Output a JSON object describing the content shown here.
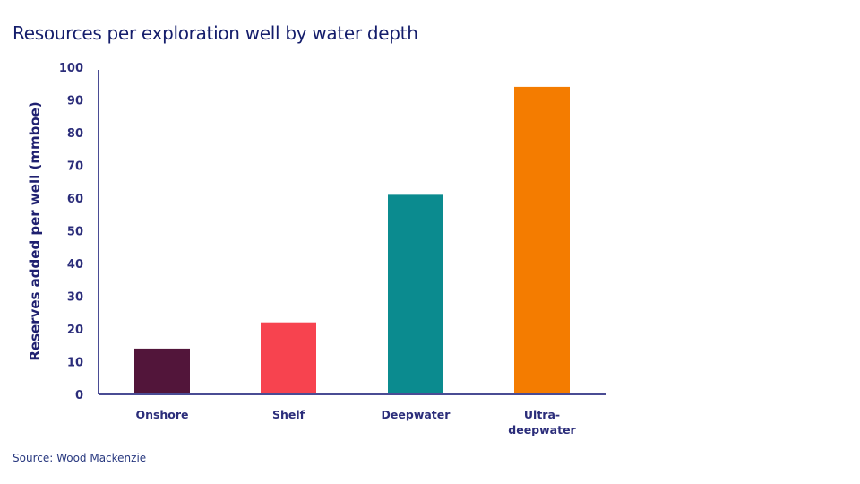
{
  "chart_data": {
    "type": "bar",
    "title": "Resources per exploration well by water depth",
    "xlabel": "",
    "ylabel": "Reserves added per well (mmboe)",
    "categories": [
      [
        "Onshore"
      ],
      [
        "Shelf"
      ],
      [
        "Deepwater"
      ],
      [
        "Ultra-",
        "deepwater"
      ]
    ],
    "values": [
      14,
      22,
      61,
      94
    ],
    "colors": [
      "#52153a",
      "#f7434f",
      "#0b8b8f",
      "#f47c00"
    ],
    "ylim": [
      0,
      100
    ],
    "yticks": [
      "0",
      "10",
      "20",
      "30",
      "40",
      "50",
      "60",
      "70",
      "80",
      "90",
      "100"
    ],
    "grid": false,
    "legend": "none"
  },
  "source": "Source: Wood Mackenzie",
  "colors": {
    "title": "#141d6b",
    "axis": "#4a4c94"
  }
}
